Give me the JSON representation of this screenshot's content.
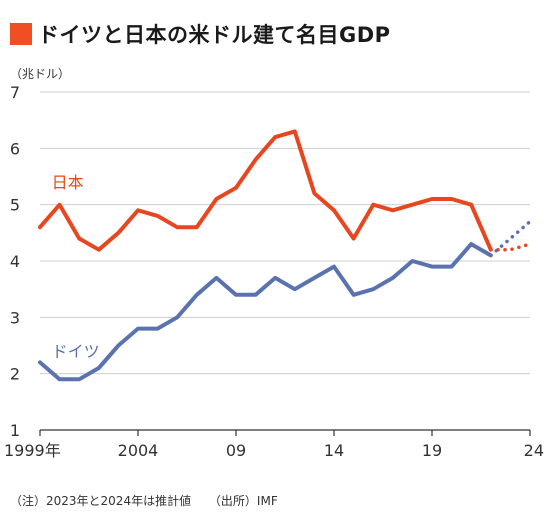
{
  "title": "ドイツと日本の米ドル建て名目GDP",
  "footnote": {
    "note": "（注）2023年と2024年は推計値",
    "source": "（出所）IMF"
  },
  "colors": {
    "title_square": "#f04e23",
    "japan": "#e8461e",
    "germany": "#5b72b0",
    "grid": "#cfcfcf",
    "axis": "#333333"
  },
  "chart_data": {
    "type": "line",
    "unit_label": "（兆ドル）",
    "ylim": [
      1,
      7
    ],
    "y_ticks": [
      "1",
      "2",
      "3",
      "4",
      "5",
      "6",
      "7"
    ],
    "xlim": [
      1999,
      2024
    ],
    "x_ticks": [
      {
        "value": 1999,
        "label": "1999年"
      },
      {
        "value": 2004,
        "label": "2004"
      },
      {
        "value": 2009,
        "label": "09"
      },
      {
        "value": 2014,
        "label": "14"
      },
      {
        "value": 2019,
        "label": "19"
      },
      {
        "value": 2024,
        "label": "24"
      }
    ],
    "grid": true,
    "series": [
      {
        "name": "日本",
        "color_key": "japan",
        "label_anchor": {
          "x": 2000,
          "y": 5.3
        },
        "x": [
          1999,
          2000,
          2001,
          2002,
          2003,
          2004,
          2005,
          2006,
          2007,
          2008,
          2009,
          2010,
          2011,
          2012,
          2013,
          2014,
          2015,
          2016,
          2017,
          2018,
          2019,
          2020,
          2021,
          2022
        ],
        "values": [
          4.6,
          5.0,
          4.4,
          4.2,
          4.5,
          4.9,
          4.8,
          4.6,
          4.6,
          5.1,
          5.3,
          5.8,
          6.2,
          6.3,
          5.2,
          4.9,
          4.4,
          5.0,
          4.9,
          5.0,
          5.1,
          5.1,
          5.0,
          4.2
        ],
        "projection": {
          "x": [
            2022,
            2023,
            2024
          ],
          "values": [
            4.2,
            4.2,
            4.3
          ]
        }
      },
      {
        "name": "ドイツ",
        "color_key": "germany",
        "label_anchor": {
          "x": 2000,
          "y": 2.3
        },
        "x": [
          1999,
          2000,
          2001,
          2002,
          2003,
          2004,
          2005,
          2006,
          2007,
          2008,
          2009,
          2010,
          2011,
          2012,
          2013,
          2014,
          2015,
          2016,
          2017,
          2018,
          2019,
          2020,
          2021,
          2022
        ],
        "values": [
          2.2,
          1.9,
          1.9,
          2.1,
          2.5,
          2.8,
          2.8,
          3.0,
          3.4,
          3.7,
          3.4,
          3.4,
          3.7,
          3.5,
          3.7,
          3.9,
          3.4,
          3.5,
          3.7,
          4.0,
          3.9,
          3.9,
          4.3,
          4.1
        ],
        "projection": {
          "x": [
            2022,
            2023,
            2024
          ],
          "values": [
            4.1,
            4.4,
            4.7
          ]
        }
      }
    ]
  }
}
